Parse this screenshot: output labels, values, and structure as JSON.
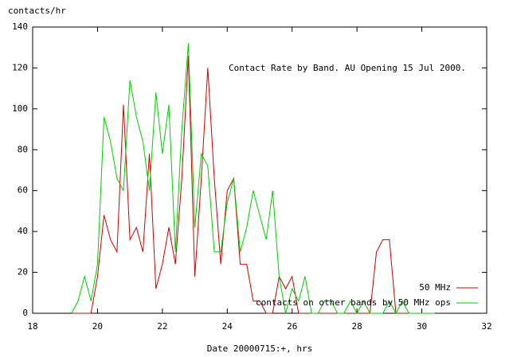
{
  "chart_data": {
    "type": "line",
    "title": "Contact Rate by Band. AU Opening 15 Jul 2000.",
    "y_label": "contacts/hr",
    "x_label": "Date  20000715:+, hrs",
    "xlim": [
      18,
      32
    ],
    "ylim": [
      0,
      140
    ],
    "xticks": [
      18,
      20,
      22,
      24,
      26,
      28,
      30,
      32
    ],
    "yticks": [
      0,
      20,
      40,
      60,
      80,
      100,
      120,
      140
    ],
    "legend": "bottom-right",
    "x": [
      19.2,
      19.4,
      19.6,
      19.8,
      20,
      20.2,
      20.4,
      20.6,
      20.8,
      21,
      21.2,
      21.4,
      21.6,
      21.8,
      22,
      22.2,
      22.4,
      22.6,
      22.8,
      23,
      23.2,
      23.4,
      23.6,
      23.8,
      24,
      24.2,
      24.4,
      24.6,
      24.8,
      25,
      25.2,
      25.4,
      25.6,
      25.8,
      26,
      26.2,
      26.4,
      26.6,
      26.8,
      27,
      27.2,
      27.4,
      27.6,
      27.8,
      28,
      28.2,
      28.4,
      28.6,
      28.8,
      29,
      29.2,
      29.4,
      29.6,
      29.8,
      30,
      30.2,
      30.4
    ],
    "series": [
      {
        "name": "50 MHz",
        "color": "#d00000",
        "values": [
          0,
          0,
          0,
          0,
          18,
          48,
          36,
          30,
          102,
          36,
          42,
          30,
          78,
          12,
          24,
          42,
          24,
          66,
          126,
          18,
          66,
          120,
          66,
          24,
          60,
          66,
          24,
          24,
          6,
          6,
          0,
          0,
          18,
          12,
          18,
          0,
          0,
          0,
          0,
          0,
          0,
          0,
          0,
          0,
          0,
          0,
          0,
          30,
          36,
          36,
          0,
          0,
          0,
          0,
          0,
          0,
          0
        ]
      },
      {
        "name": "contacts on other bands by 50 MHz ops",
        "color": "#00d000",
        "values": [
          0,
          6,
          18,
          6,
          24,
          96,
          84,
          66,
          60,
          114,
          96,
          84,
          60,
          108,
          78,
          102,
          30,
          90,
          132,
          42,
          78,
          72,
          30,
          30,
          54,
          66,
          30,
          42,
          60,
          48,
          36,
          60,
          18,
          0,
          12,
          6,
          18,
          0,
          0,
          6,
          6,
          0,
          0,
          6,
          0,
          6,
          0,
          0,
          0,
          6,
          0,
          6,
          0,
          0,
          0,
          0,
          0
        ]
      }
    ]
  }
}
